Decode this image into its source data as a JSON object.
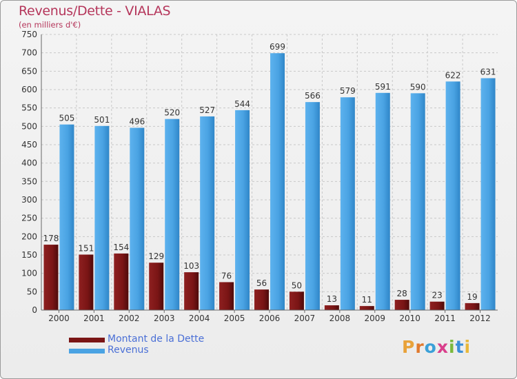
{
  "header": {
    "title": "Revenus/Dette - VIALAS",
    "subtitle": "(en milliers d'€)"
  },
  "brand": {
    "letters": [
      "P",
      "r",
      "o",
      "x",
      "i",
      "t",
      "i"
    ],
    "colors": [
      "#e8a23a",
      "#e07a2e",
      "#3aa0d8",
      "#d93f8c",
      "#7ab83c",
      "#3a8fd8",
      "#e8b83a"
    ]
  },
  "colors": {
    "debt": "#7a1515",
    "revenue": "#4aa3e3",
    "grid": "#c8c8c8",
    "axis": "#666666",
    "text": "#333333"
  },
  "chart_data": {
    "type": "bar",
    "title": "Revenus/Dette - VIALAS",
    "subtitle": "(en milliers d'€)",
    "categories": [
      "2000",
      "2001",
      "2002",
      "2003",
      "2004",
      "2005",
      "2006",
      "2007",
      "2008",
      "2009",
      "2010",
      "2011",
      "2012"
    ],
    "series": [
      {
        "name": "Montant de la Dette",
        "color": "#7a1515",
        "values": [
          178,
          151,
          154,
          129,
          103,
          76,
          56,
          50,
          13,
          11,
          28,
          23,
          19
        ]
      },
      {
        "name": "Revenus",
        "color": "#4aa3e3",
        "values": [
          505,
          501,
          496,
          520,
          527,
          544,
          699,
          566,
          579,
          591,
          590,
          622,
          631
        ]
      }
    ],
    "yticks": [
      0,
      50,
      100,
      150,
      200,
      250,
      300,
      350,
      400,
      450,
      500,
      550,
      600,
      650,
      700,
      750
    ],
    "ylim": [
      0,
      750
    ],
    "grid": true,
    "legend": "bottom-left"
  }
}
